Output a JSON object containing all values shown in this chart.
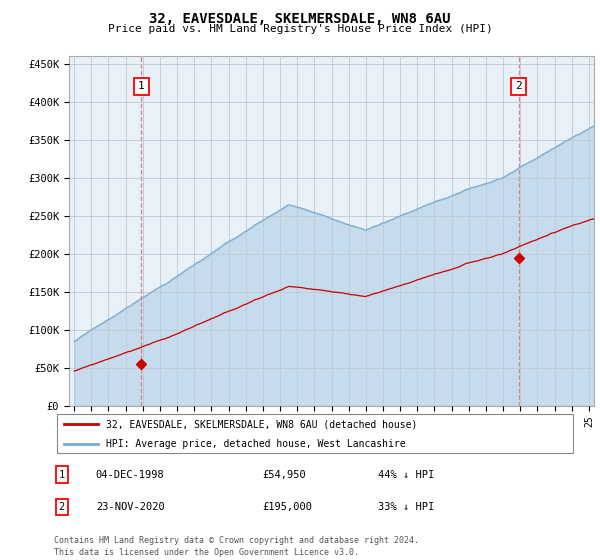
{
  "title": "32, EAVESDALE, SKELMERSDALE, WN8 6AU",
  "subtitle": "Price paid vs. HM Land Registry's House Price Index (HPI)",
  "ylabel_ticks": [
    "£0",
    "£50K",
    "£100K",
    "£150K",
    "£200K",
    "£250K",
    "£300K",
    "£350K",
    "£400K",
    "£450K"
  ],
  "ytick_values": [
    0,
    50000,
    100000,
    150000,
    200000,
    250000,
    300000,
    350000,
    400000,
    450000
  ],
  "ylim": [
    0,
    460000
  ],
  "xlim_start": 1994.7,
  "xlim_end": 2025.3,
  "transaction1": {
    "label": "1",
    "date": "04-DEC-1998",
    "price": 54950,
    "pct": "44% ↓ HPI",
    "year": 1998.92
  },
  "transaction2": {
    "label": "2",
    "date": "23-NOV-2020",
    "price": 195000,
    "pct": "33% ↓ HPI",
    "year": 2020.9
  },
  "legend_line1": "32, EAVESDALE, SKELMERSDALE, WN8 6AU (detached house)",
  "legend_line2": "HPI: Average price, detached house, West Lancashire",
  "footer1": "Contains HM Land Registry data © Crown copyright and database right 2024.",
  "footer2": "This data is licensed under the Open Government Licence v3.0.",
  "red_color": "#cc0000",
  "blue_color": "#7aadcf",
  "blue_fill": "#ddeeff",
  "background_color": "#ffffff",
  "plot_bg": "#e8f0f8",
  "grid_color": "#c0c8d8",
  "dashed_color": "#e08080"
}
